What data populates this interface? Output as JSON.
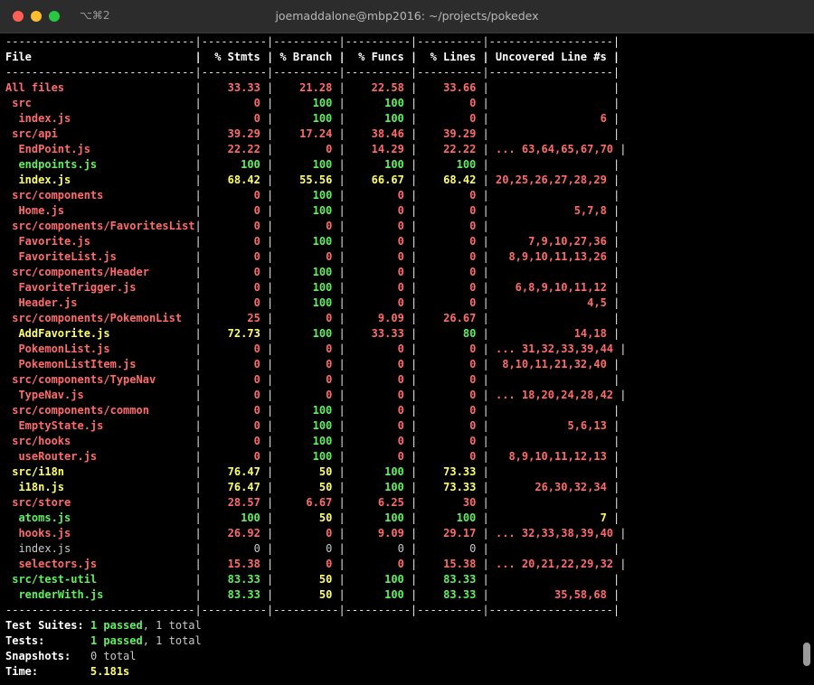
{
  "window": {
    "title": "joemaddalone@mbp2016: ~/projects/pokedex",
    "shortcut": "⌥⌘2"
  },
  "colors": {
    "red": "#ff6b6b",
    "green": "#5ff05f",
    "yellow": "#ffff66",
    "white": "#ffffff",
    "gray": "#c8c8c8"
  },
  "coverage": {
    "separator": "-----------------------------|----------|----------|----------|----------|-------------------|",
    "header": "File                         |  % Stmts | % Branch |  % Funcs |  % Lines | Uncovered Line #s |",
    "rows": [
      {
        "file": "All files",
        "indent": 0,
        "stmts": "33.33",
        "branch": "21.28",
        "funcs": "22.58",
        "lines": "33.66",
        "uncovered": "",
        "c": [
          "r",
          "r",
          "r",
          "r",
          "r",
          "r"
        ]
      },
      {
        "file": "src",
        "indent": 1,
        "stmts": "0",
        "branch": "100",
        "funcs": "100",
        "lines": "0",
        "uncovered": "",
        "c": [
          "r",
          "r",
          "g",
          "g",
          "r",
          "r"
        ]
      },
      {
        "file": "index.js",
        "indent": 2,
        "stmts": "0",
        "branch": "100",
        "funcs": "100",
        "lines": "0",
        "uncovered": "6",
        "c": [
          "r",
          "r",
          "g",
          "g",
          "r",
          "r"
        ]
      },
      {
        "file": "src/api",
        "indent": 1,
        "stmts": "39.29",
        "branch": "17.24",
        "funcs": "38.46",
        "lines": "39.29",
        "uncovered": "",
        "c": [
          "r",
          "r",
          "r",
          "r",
          "r",
          "r"
        ]
      },
      {
        "file": "EndPoint.js",
        "indent": 2,
        "stmts": "22.22",
        "branch": "0",
        "funcs": "14.29",
        "lines": "22.22",
        "uncovered": "... 63,64,65,67,70",
        "c": [
          "r",
          "r",
          "r",
          "r",
          "r",
          "r"
        ]
      },
      {
        "file": "endpoints.js",
        "indent": 2,
        "stmts": "100",
        "branch": "100",
        "funcs": "100",
        "lines": "100",
        "uncovered": "",
        "c": [
          "g",
          "g",
          "g",
          "g",
          "g",
          "g"
        ]
      },
      {
        "file": "index.js",
        "indent": 2,
        "stmts": "68.42",
        "branch": "55.56",
        "funcs": "66.67",
        "lines": "68.42",
        "uncovered": "20,25,26,27,28,29",
        "c": [
          "y",
          "y",
          "y",
          "y",
          "y",
          "r"
        ]
      },
      {
        "file": "src/components",
        "indent": 1,
        "stmts": "0",
        "branch": "100",
        "funcs": "0",
        "lines": "0",
        "uncovered": "",
        "c": [
          "r",
          "r",
          "g",
          "r",
          "r",
          "r"
        ]
      },
      {
        "file": "Home.js",
        "indent": 2,
        "stmts": "0",
        "branch": "100",
        "funcs": "0",
        "lines": "0",
        "uncovered": "5,7,8",
        "c": [
          "r",
          "r",
          "g",
          "r",
          "r",
          "r"
        ]
      },
      {
        "file": "src/components/FavoritesList",
        "indent": 1,
        "stmts": "0",
        "branch": "0",
        "funcs": "0",
        "lines": "0",
        "uncovered": "",
        "c": [
          "r",
          "r",
          "r",
          "r",
          "r",
          "r"
        ]
      },
      {
        "file": "Favorite.js",
        "indent": 2,
        "stmts": "0",
        "branch": "100",
        "funcs": "0",
        "lines": "0",
        "uncovered": "7,9,10,27,36",
        "c": [
          "r",
          "r",
          "g",
          "r",
          "r",
          "r"
        ]
      },
      {
        "file": "FavoriteList.js",
        "indent": 2,
        "stmts": "0",
        "branch": "0",
        "funcs": "0",
        "lines": "0",
        "uncovered": "8,9,10,11,13,26",
        "c": [
          "r",
          "r",
          "r",
          "r",
          "r",
          "r"
        ]
      },
      {
        "file": "src/components/Header",
        "indent": 1,
        "stmts": "0",
        "branch": "100",
        "funcs": "0",
        "lines": "0",
        "uncovered": "",
        "c": [
          "r",
          "r",
          "g",
          "r",
          "r",
          "r"
        ]
      },
      {
        "file": "FavoriteTrigger.js",
        "indent": 2,
        "stmts": "0",
        "branch": "100",
        "funcs": "0",
        "lines": "0",
        "uncovered": "6,8,9,10,11,12",
        "c": [
          "r",
          "r",
          "g",
          "r",
          "r",
          "r"
        ]
      },
      {
        "file": "Header.js",
        "indent": 2,
        "stmts": "0",
        "branch": "100",
        "funcs": "0",
        "lines": "0",
        "uncovered": "4,5",
        "c": [
          "r",
          "r",
          "g",
          "r",
          "r",
          "r"
        ]
      },
      {
        "file": "src/components/PokemonList",
        "indent": 1,
        "stmts": "25",
        "branch": "0",
        "funcs": "9.09",
        "lines": "26.67",
        "uncovered": "",
        "c": [
          "r",
          "r",
          "r",
          "r",
          "r",
          "r"
        ]
      },
      {
        "file": "AddFavorite.js",
        "indent": 2,
        "stmts": "72.73",
        "branch": "100",
        "funcs": "33.33",
        "lines": "80",
        "uncovered": "14,18",
        "c": [
          "y",
          "y",
          "g",
          "r",
          "g",
          "r"
        ]
      },
      {
        "file": "PokemonList.js",
        "indent": 2,
        "stmts": "0",
        "branch": "0",
        "funcs": "0",
        "lines": "0",
        "uncovered": "... 31,32,33,39,44",
        "c": [
          "r",
          "r",
          "r",
          "r",
          "r",
          "r"
        ]
      },
      {
        "file": "PokemonListItem.js",
        "indent": 2,
        "stmts": "0",
        "branch": "0",
        "funcs": "0",
        "lines": "0",
        "uncovered": "8,10,11,21,32,40",
        "c": [
          "r",
          "r",
          "r",
          "r",
          "r",
          "r"
        ]
      },
      {
        "file": "src/components/TypeNav",
        "indent": 1,
        "stmts": "0",
        "branch": "0",
        "funcs": "0",
        "lines": "0",
        "uncovered": "",
        "c": [
          "r",
          "r",
          "r",
          "r",
          "r",
          "r"
        ]
      },
      {
        "file": "TypeNav.js",
        "indent": 2,
        "stmts": "0",
        "branch": "0",
        "funcs": "0",
        "lines": "0",
        "uncovered": "... 18,20,24,28,42",
        "c": [
          "r",
          "r",
          "r",
          "r",
          "r",
          "r"
        ]
      },
      {
        "file": "src/components/common",
        "indent": 1,
        "stmts": "0",
        "branch": "100",
        "funcs": "0",
        "lines": "0",
        "uncovered": "",
        "c": [
          "r",
          "r",
          "g",
          "r",
          "r",
          "r"
        ]
      },
      {
        "file": "EmptyState.js",
        "indent": 2,
        "stmts": "0",
        "branch": "100",
        "funcs": "0",
        "lines": "0",
        "uncovered": "5,6,13",
        "c": [
          "r",
          "r",
          "g",
          "r",
          "r",
          "r"
        ]
      },
      {
        "file": "src/hooks",
        "indent": 1,
        "stmts": "0",
        "branch": "100",
        "funcs": "0",
        "lines": "0",
        "uncovered": "",
        "c": [
          "r",
          "r",
          "g",
          "r",
          "r",
          "r"
        ]
      },
      {
        "file": "useRouter.js",
        "indent": 2,
        "stmts": "0",
        "branch": "100",
        "funcs": "0",
        "lines": "0",
        "uncovered": "8,9,10,11,12,13",
        "c": [
          "r",
          "r",
          "g",
          "r",
          "r",
          "r"
        ]
      },
      {
        "file": "src/i18n",
        "indent": 1,
        "stmts": "76.47",
        "branch": "50",
        "funcs": "100",
        "lines": "73.33",
        "uncovered": "",
        "c": [
          "y",
          "y",
          "y",
          "g",
          "y",
          "r"
        ]
      },
      {
        "file": "i18n.js",
        "indent": 2,
        "stmts": "76.47",
        "branch": "50",
        "funcs": "100",
        "lines": "73.33",
        "uncovered": "26,30,32,34",
        "c": [
          "y",
          "y",
          "y",
          "g",
          "y",
          "r"
        ]
      },
      {
        "file": "src/store",
        "indent": 1,
        "stmts": "28.57",
        "branch": "6.67",
        "funcs": "6.25",
        "lines": "30",
        "uncovered": "",
        "c": [
          "r",
          "r",
          "r",
          "r",
          "r",
          "r"
        ]
      },
      {
        "file": "atoms.js",
        "indent": 2,
        "stmts": "100",
        "branch": "50",
        "funcs": "100",
        "lines": "100",
        "uncovered": "7",
        "c": [
          "g",
          "g",
          "y",
          "g",
          "g",
          "y"
        ]
      },
      {
        "file": "hooks.js",
        "indent": 2,
        "stmts": "26.92",
        "branch": "0",
        "funcs": "9.09",
        "lines": "29.17",
        "uncovered": "... 32,33,38,39,40",
        "c": [
          "r",
          "r",
          "r",
          "r",
          "r",
          "r"
        ]
      },
      {
        "file": "index.js",
        "indent": 2,
        "stmts": "0",
        "branch": "0",
        "funcs": "0",
        "lines": "0",
        "uncovered": "",
        "c": [
          "n",
          "n",
          "n",
          "n",
          "n",
          "n"
        ]
      },
      {
        "file": "selectors.js",
        "indent": 2,
        "stmts": "15.38",
        "branch": "0",
        "funcs": "0",
        "lines": "15.38",
        "uncovered": "... 20,21,22,29,32",
        "c": [
          "r",
          "r",
          "r",
          "r",
          "r",
          "r"
        ]
      },
      {
        "file": "src/test-util",
        "indent": 1,
        "stmts": "83.33",
        "branch": "50",
        "funcs": "100",
        "lines": "83.33",
        "uncovered": "",
        "c": [
          "g",
          "g",
          "y",
          "g",
          "g",
          "r"
        ]
      },
      {
        "file": "renderWith.js",
        "indent": 2,
        "stmts": "83.33",
        "branch": "50",
        "funcs": "100",
        "lines": "83.33",
        "uncovered": "35,58,68",
        "c": [
          "g",
          "g",
          "y",
          "g",
          "g",
          "r"
        ]
      }
    ]
  },
  "summary": {
    "suites_label": "Test Suites:",
    "suites_passed": "1 passed",
    "suites_total": ", 1 total",
    "tests_label": "Tests:",
    "tests_passed": "1 passed",
    "tests_total": ", 1 total",
    "snapshots_label": "Snapshots:",
    "snapshots_value": "0 total",
    "time_label": "Time:",
    "time_value": "5.181s"
  }
}
